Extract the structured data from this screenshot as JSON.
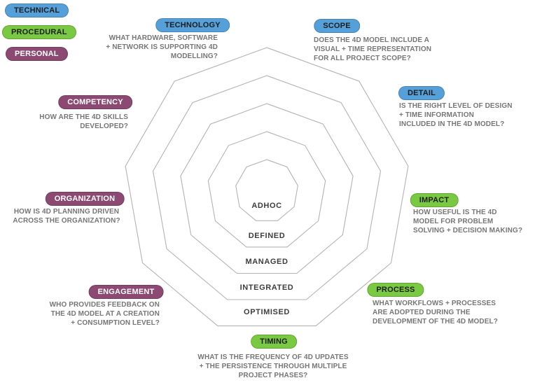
{
  "legend": [
    {
      "label": "TECHNICAL",
      "group": "technical"
    },
    {
      "label": "PROCEDURAL",
      "group": "procedural"
    },
    {
      "label": "PERSONAL",
      "group": "personal"
    }
  ],
  "rings": [
    "ADHOC",
    "DEFINED",
    "MANAGED",
    "INTEGRATED",
    "OPTIMISED"
  ],
  "categories": [
    {
      "label": "TECHNOLOGY",
      "group": "technical",
      "question": "WHAT HARDWARE, SOFTWARE\n+ NETWORK IS SUPPORTING 4D\nMODELLING?"
    },
    {
      "label": "SCOPE",
      "group": "technical",
      "question": "DOES THE 4D MODEL INCLUDE A\nVISUAL + TIME REPRESENTATION\nFOR ALL PROJECT SCOPE?"
    },
    {
      "label": "DETAIL",
      "group": "technical",
      "question": "IS THE RIGHT LEVEL OF DESIGN\n+ TIME INFORMATION\nINCLUDED IN THE 4D MODEL?"
    },
    {
      "label": "COMPETENCY",
      "group": "personal",
      "question": "HOW ARE THE 4D SKILLS\nDEVELOPED?"
    },
    {
      "label": "ORGANIZATION",
      "group": "personal",
      "question": "HOW IS 4D PLANNING DRIVEN\nACROSS THE ORGANIZATION?"
    },
    {
      "label": "ENGAGEMENT",
      "group": "personal",
      "question": "WHO PROVIDES FEEDBACK ON\nTHE 4D MODEL AT A CREATION\n+ CONSUMPTION LEVEL?"
    },
    {
      "label": "IMPACT",
      "group": "procedural",
      "question": "HOW USEFUL IS THE 4D\nMODEL FOR PROBLEM\nSOLVING + DECISION MAKING?"
    },
    {
      "label": "PROCESS",
      "group": "procedural",
      "question": "WHAT WORKFLOWS + PROCESSES\nARE ADOPTED DURING THE\nDEVELOPMENT OF THE 4D MODEL?"
    },
    {
      "label": "TIMING",
      "group": "procedural",
      "question": "WHAT IS THE FREQUENCY OF 4D UPDATES\n+ THE PERSISTENCE THROUGH MULTIPLE\nPROJECT PHASES?"
    }
  ],
  "colors": {
    "technical": "#56a0da",
    "procedural": "#7ac943",
    "personal": "#8c4a73",
    "ring_stroke": "#b3b3b3",
    "question_text": "#767676"
  }
}
